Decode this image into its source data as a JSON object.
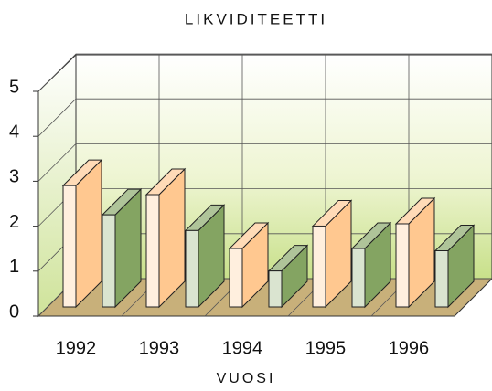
{
  "chart_data": {
    "type": "bar3d",
    "title": "LIKVIDITEETTI",
    "x_label": "VUOSI",
    "categories": [
      "1992",
      "1993",
      "1994",
      "1995",
      "1996"
    ],
    "series": [
      {
        "color": "#ffc890",
        "values": [
          2.7,
          2.5,
          1.3,
          1.8,
          1.85
        ]
      },
      {
        "color": "#84a462",
        "values": [
          2.05,
          1.7,
          0.8,
          1.3,
          1.25
        ]
      }
    ],
    "ylim": [
      0,
      5
    ],
    "yticks": [
      0,
      1,
      2,
      3,
      4,
      5
    ],
    "grid": true
  }
}
